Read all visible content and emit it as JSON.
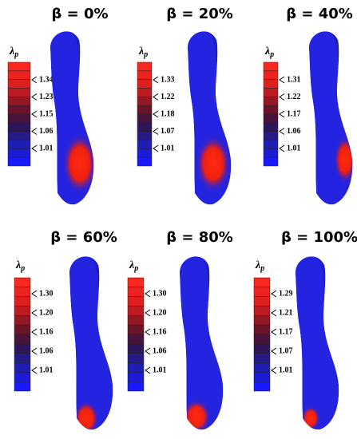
{
  "panels": [
    {
      "title": "β = 0%",
      "legend_label": "λ",
      "legend_subscript": "p",
      "ticks": [
        "1.34",
        "1.23",
        "1.15",
        "1.06",
        "1.01"
      ]
    },
    {
      "title": "β = 20%",
      "legend_label": "λ",
      "legend_subscript": "p",
      "ticks": [
        "1.33",
        "1.22",
        "1.18",
        "1.07",
        "1.01"
      ]
    },
    {
      "title": "β = 40%",
      "legend_label": "λ",
      "legend_subscript": "p",
      "ticks": [
        "1.31",
        "1.22",
        "1.17",
        "1.06",
        "1.01"
      ]
    },
    {
      "title": "β = 60%",
      "legend_label": "λ",
      "legend_subscript": "p",
      "ticks": [
        "1.30",
        "1.20",
        "1.16",
        "1.06",
        "1.01"
      ]
    },
    {
      "title": "β = 80%",
      "legend_label": "λ",
      "legend_subscript": "p",
      "ticks": [
        "1.30",
        "1.20",
        "1.16",
        "1.06",
        "1.01"
      ]
    },
    {
      "title": "β = 100%",
      "legend_label": "λ",
      "legend_subscript": "p",
      "ticks": [
        "1.29",
        "1.21",
        "1.17",
        "1.07",
        "1.01"
      ]
    }
  ]
}
